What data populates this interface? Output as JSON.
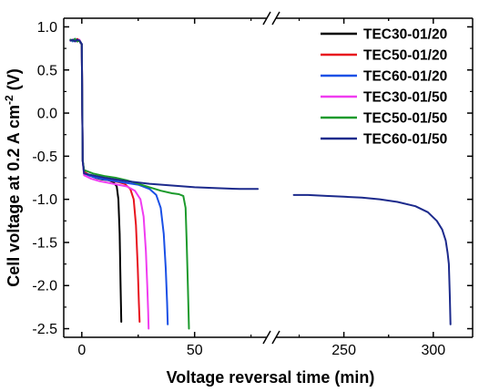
{
  "chart_data": {
    "type": "line",
    "xlabel": "Voltage reversal time (min)",
    "ylabel_parts": {
      "pre": "Cell voltage at 0.2 A cm",
      "sup": "-2",
      "post": " (V)"
    },
    "ylim": [
      -2.6,
      1.1
    ],
    "y_ticks": [
      1.0,
      0.5,
      0.0,
      -0.5,
      -1.0,
      -1.5,
      -2.0,
      -2.5
    ],
    "y_tick_labels": [
      "1.0",
      "0.5",
      "0.0",
      "-0.5",
      "-1.0",
      "-1.5",
      "-2.0",
      "-2.5"
    ],
    "x_axis_break": true,
    "x_segments": [
      {
        "data_range": [
          -8,
          82
        ],
        "ticks": [
          0,
          50
        ],
        "tick_labels": [
          "0",
          "50"
        ]
      },
      {
        "data_range": [
          212,
          322
        ],
        "ticks": [
          250,
          300
        ],
        "tick_labels": [
          "250",
          "300"
        ]
      }
    ],
    "legend_position": "top-right",
    "series": [
      {
        "name": "TEC30-01/20",
        "color": "#000000",
        "x": [
          -5,
          -4,
          -3,
          -2,
          -1,
          -0.5,
          0,
          0.4,
          1,
          3,
          6,
          9,
          12,
          14,
          15.5,
          16.2,
          16.8,
          17.2,
          17.5
        ],
        "y": [
          0.85,
          0.84,
          0.86,
          0.83,
          0.84,
          0.81,
          0.8,
          -0.55,
          -0.68,
          -0.72,
          -0.75,
          -0.77,
          -0.78,
          -0.8,
          -0.85,
          -1.0,
          -1.4,
          -2.0,
          -2.42
        ]
      },
      {
        "name": "TEC50-01/20",
        "color": "#e8141e",
        "x": [
          -5,
          -4,
          -3,
          -2,
          -1,
          -0.5,
          0,
          0.4,
          1,
          4,
          8,
          12,
          16,
          19,
          21.5,
          23,
          24,
          24.8,
          25.3,
          25.6
        ],
        "y": [
          0.84,
          0.85,
          0.83,
          0.86,
          0.84,
          0.82,
          0.8,
          -0.55,
          -0.68,
          -0.73,
          -0.76,
          -0.78,
          -0.8,
          -0.82,
          -0.88,
          -1.0,
          -1.3,
          -1.8,
          -2.2,
          -2.42
        ]
      },
      {
        "name": "TEC60-01/20",
        "color": "#1a50e6",
        "x": [
          -5,
          -4,
          -3,
          -2,
          -1,
          -0.5,
          0,
          0.4,
          1,
          5,
          10,
          15,
          20,
          25,
          30,
          33,
          35,
          36.3,
          37.2,
          37.8,
          38.1
        ],
        "y": [
          0.85,
          0.83,
          0.86,
          0.84,
          0.84,
          0.82,
          0.8,
          -0.55,
          -0.7,
          -0.74,
          -0.77,
          -0.79,
          -0.81,
          -0.83,
          -0.88,
          -0.95,
          -1.1,
          -1.4,
          -1.8,
          -2.2,
          -2.45
        ]
      },
      {
        "name": "TEC30-01/50",
        "color": "#f03cf0",
        "x": [
          -5,
          -4,
          -3,
          -2,
          -1,
          -0.5,
          0,
          0.4,
          1,
          4,
          8,
          12,
          16,
          20,
          23.5,
          26,
          27.4,
          28.4,
          29,
          29.4,
          29.6
        ],
        "y": [
          0.84,
          0.85,
          0.83,
          0.84,
          0.85,
          0.82,
          0.8,
          -0.55,
          -0.72,
          -0.76,
          -0.79,
          -0.81,
          -0.83,
          -0.85,
          -0.9,
          -1.0,
          -1.2,
          -1.6,
          -2.0,
          -2.3,
          -2.5
        ]
      },
      {
        "name": "TEC50-01/50",
        "color": "#1c9a2c",
        "x": [
          -5,
          -4,
          -3,
          -2,
          -1,
          -0.5,
          0,
          0.4,
          1,
          5,
          10,
          15,
          20,
          25,
          30,
          35,
          40,
          43,
          45,
          46,
          46.5,
          47,
          47.5
        ],
        "y": [
          0.85,
          0.84,
          0.86,
          0.83,
          0.84,
          0.82,
          0.8,
          -0.55,
          -0.66,
          -0.7,
          -0.73,
          -0.75,
          -0.78,
          -0.82,
          -0.86,
          -0.9,
          -0.93,
          -0.94,
          -0.96,
          -1.1,
          -1.5,
          -2.0,
          -2.5
        ]
      },
      {
        "name": "TEC60-01/50",
        "color": "#1c2a8c",
        "x": [
          -5,
          -4,
          -3,
          -2,
          -1,
          -0.5,
          0,
          0.4,
          1,
          10,
          20,
          30,
          40,
          50,
          60,
          70,
          78,
          222,
          230,
          240,
          250,
          260,
          270,
          280,
          290,
          297,
          302,
          305,
          307,
          308,
          308.7,
          309.2,
          309.6
        ],
        "y": [
          0.84,
          0.85,
          0.83,
          0.85,
          0.84,
          0.82,
          0.8,
          -0.55,
          -0.7,
          -0.75,
          -0.79,
          -0.82,
          -0.84,
          -0.86,
          -0.87,
          -0.88,
          -0.88,
          -0.95,
          -0.95,
          -0.96,
          -0.97,
          -0.98,
          -1.0,
          -1.03,
          -1.08,
          -1.15,
          -1.25,
          -1.35,
          -1.48,
          -1.62,
          -1.75,
          -2.1,
          -2.45
        ]
      }
    ]
  }
}
